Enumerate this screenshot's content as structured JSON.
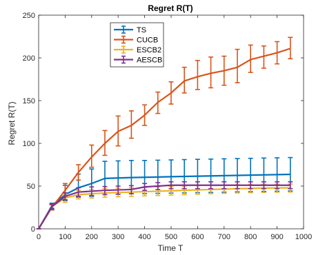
{
  "chart_data": {
    "type": "line",
    "title": "Regret R(T)",
    "xlabel": "Time T",
    "ylabel": "Regret R(T)",
    "xlim": [
      0,
      1000
    ],
    "ylim": [
      0,
      250
    ],
    "xticks": [
      "0",
      "100",
      "200",
      "300",
      "400",
      "500",
      "600",
      "700",
      "800",
      "900",
      "1000"
    ],
    "yticks": [
      "0",
      "50",
      "100",
      "150",
      "200",
      "250"
    ],
    "grid": false,
    "legend_position": "top-center",
    "error_bars": true,
    "x": [
      0,
      50,
      100,
      150,
      200,
      250,
      300,
      350,
      400,
      450,
      500,
      550,
      600,
      650,
      700,
      750,
      800,
      850,
      900,
      950
    ],
    "series": [
      {
        "name": "TS",
        "color": "#0072BD",
        "values": [
          0,
          27,
          40,
          48,
          53,
          59,
          59.5,
          60,
          60.3,
          60.6,
          61,
          61.3,
          61.6,
          61.9,
          62.2,
          62.5,
          62.8,
          63.1,
          63.4,
          63.7
        ],
        "upper": [
          0,
          30,
          51,
          64,
          70,
          79,
          79.5,
          80,
          80,
          80.3,
          80.6,
          81,
          81.3,
          81.6,
          81.9,
          82.2,
          82.5,
          82.8,
          83.1,
          83.4
        ],
        "lower": [
          0,
          24,
          33,
          37,
          38,
          40,
          40.5,
          41,
          41.2,
          41.5,
          41.8,
          42,
          42.3,
          42.6,
          42.9,
          43.2,
          43.5,
          43.8,
          44,
          44.3
        ]
      },
      {
        "name": "CUCB",
        "color": "#D95319",
        "values": [
          0,
          25,
          45,
          66,
          84,
          100,
          114,
          121,
          133,
          148,
          159,
          173,
          178,
          182,
          185,
          189,
          198,
          202,
          206,
          211
        ],
        "upper": [
          0,
          28,
          53,
          75,
          98,
          115,
          132,
          138,
          145,
          160,
          172,
          189,
          197,
          201,
          202,
          210,
          215,
          214,
          219,
          224
        ],
        "lower": [
          0,
          22,
          38,
          57,
          72,
          86,
          97,
          106,
          121,
          135,
          146,
          159,
          163,
          165,
          168,
          171,
          183,
          188,
          193,
          199
        ]
      },
      {
        "name": "ESCB2",
        "color": "#EDB120",
        "values": [
          0,
          26,
          36,
          40,
          41,
          42,
          42.5,
          43,
          43.5,
          44,
          44.5,
          45,
          45.5,
          46,
          46.5,
          47,
          47.3,
          47.6,
          47.8,
          48
        ],
        "upper": [
          0,
          29,
          41,
          45,
          46,
          47,
          47.5,
          48,
          48.5,
          49,
          49.5,
          50,
          50.5,
          51,
          51.3,
          51.6,
          51.8,
          52,
          52.2,
          52.4
        ],
        "lower": [
          0,
          23,
          31,
          35,
          36,
          37,
          37.5,
          38,
          38.5,
          39,
          39.5,
          40,
          40.5,
          41,
          41.5,
          42,
          42.3,
          42.6,
          42.8,
          43
        ]
      },
      {
        "name": "AESCB",
        "color": "#7E2F8E",
        "values": [
          0,
          26,
          38,
          43,
          44,
          45,
          45.5,
          46,
          49,
          50,
          51,
          51,
          51,
          51,
          51,
          51,
          51,
          51,
          51,
          51
        ],
        "upper": [
          0,
          29,
          42,
          48,
          49,
          49.5,
          50,
          50.5,
          53,
          54,
          55,
          55,
          55,
          55,
          55,
          55,
          55,
          55,
          55,
          55
        ],
        "lower": [
          0,
          23,
          34,
          38,
          39,
          40,
          40.5,
          41,
          45,
          46,
          47,
          47,
          47,
          47,
          47,
          47,
          47,
          47,
          47,
          47
        ]
      }
    ]
  }
}
